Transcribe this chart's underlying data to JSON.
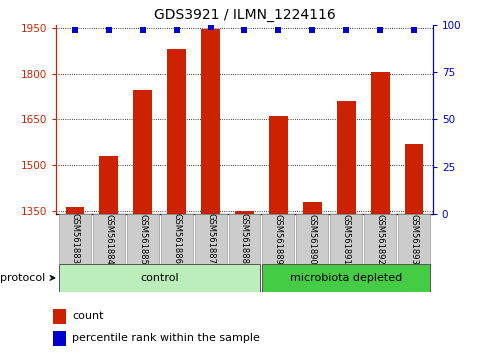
{
  "title": "GDS3921 / ILMN_1224116",
  "samples": [
    "GSM561883",
    "GSM561884",
    "GSM561885",
    "GSM561886",
    "GSM561887",
    "GSM561888",
    "GSM561889",
    "GSM561890",
    "GSM561891",
    "GSM561892",
    "GSM561893"
  ],
  "counts": [
    1365,
    1530,
    1745,
    1880,
    1945,
    1350,
    1660,
    1380,
    1710,
    1805,
    1570
  ],
  "percentile_ranks": [
    97,
    97,
    97,
    97,
    99,
    97,
    97,
    97,
    97,
    97,
    97
  ],
  "bar_color": "#cc2200",
  "dot_color": "#0000cc",
  "ylim_left": [
    1340,
    1960
  ],
  "ylim_right": [
    0,
    100
  ],
  "yticks_left": [
    1350,
    1500,
    1650,
    1800,
    1950
  ],
  "yticks_right": [
    0,
    25,
    50,
    75,
    100
  ],
  "groups": [
    {
      "label": "control",
      "indices": [
        0,
        1,
        2,
        3,
        4,
        5
      ]
    },
    {
      "label": "microbiota depleted",
      "indices": [
        6,
        7,
        8,
        9,
        10
      ]
    }
  ],
  "protocol_label": "protocol",
  "legend_count_label": "count",
  "legend_percentile_label": "percentile rank within the sample",
  "group_color_1": "#bbeebb",
  "group_color_2": "#44cc44",
  "sample_box_color": "#cccccc"
}
